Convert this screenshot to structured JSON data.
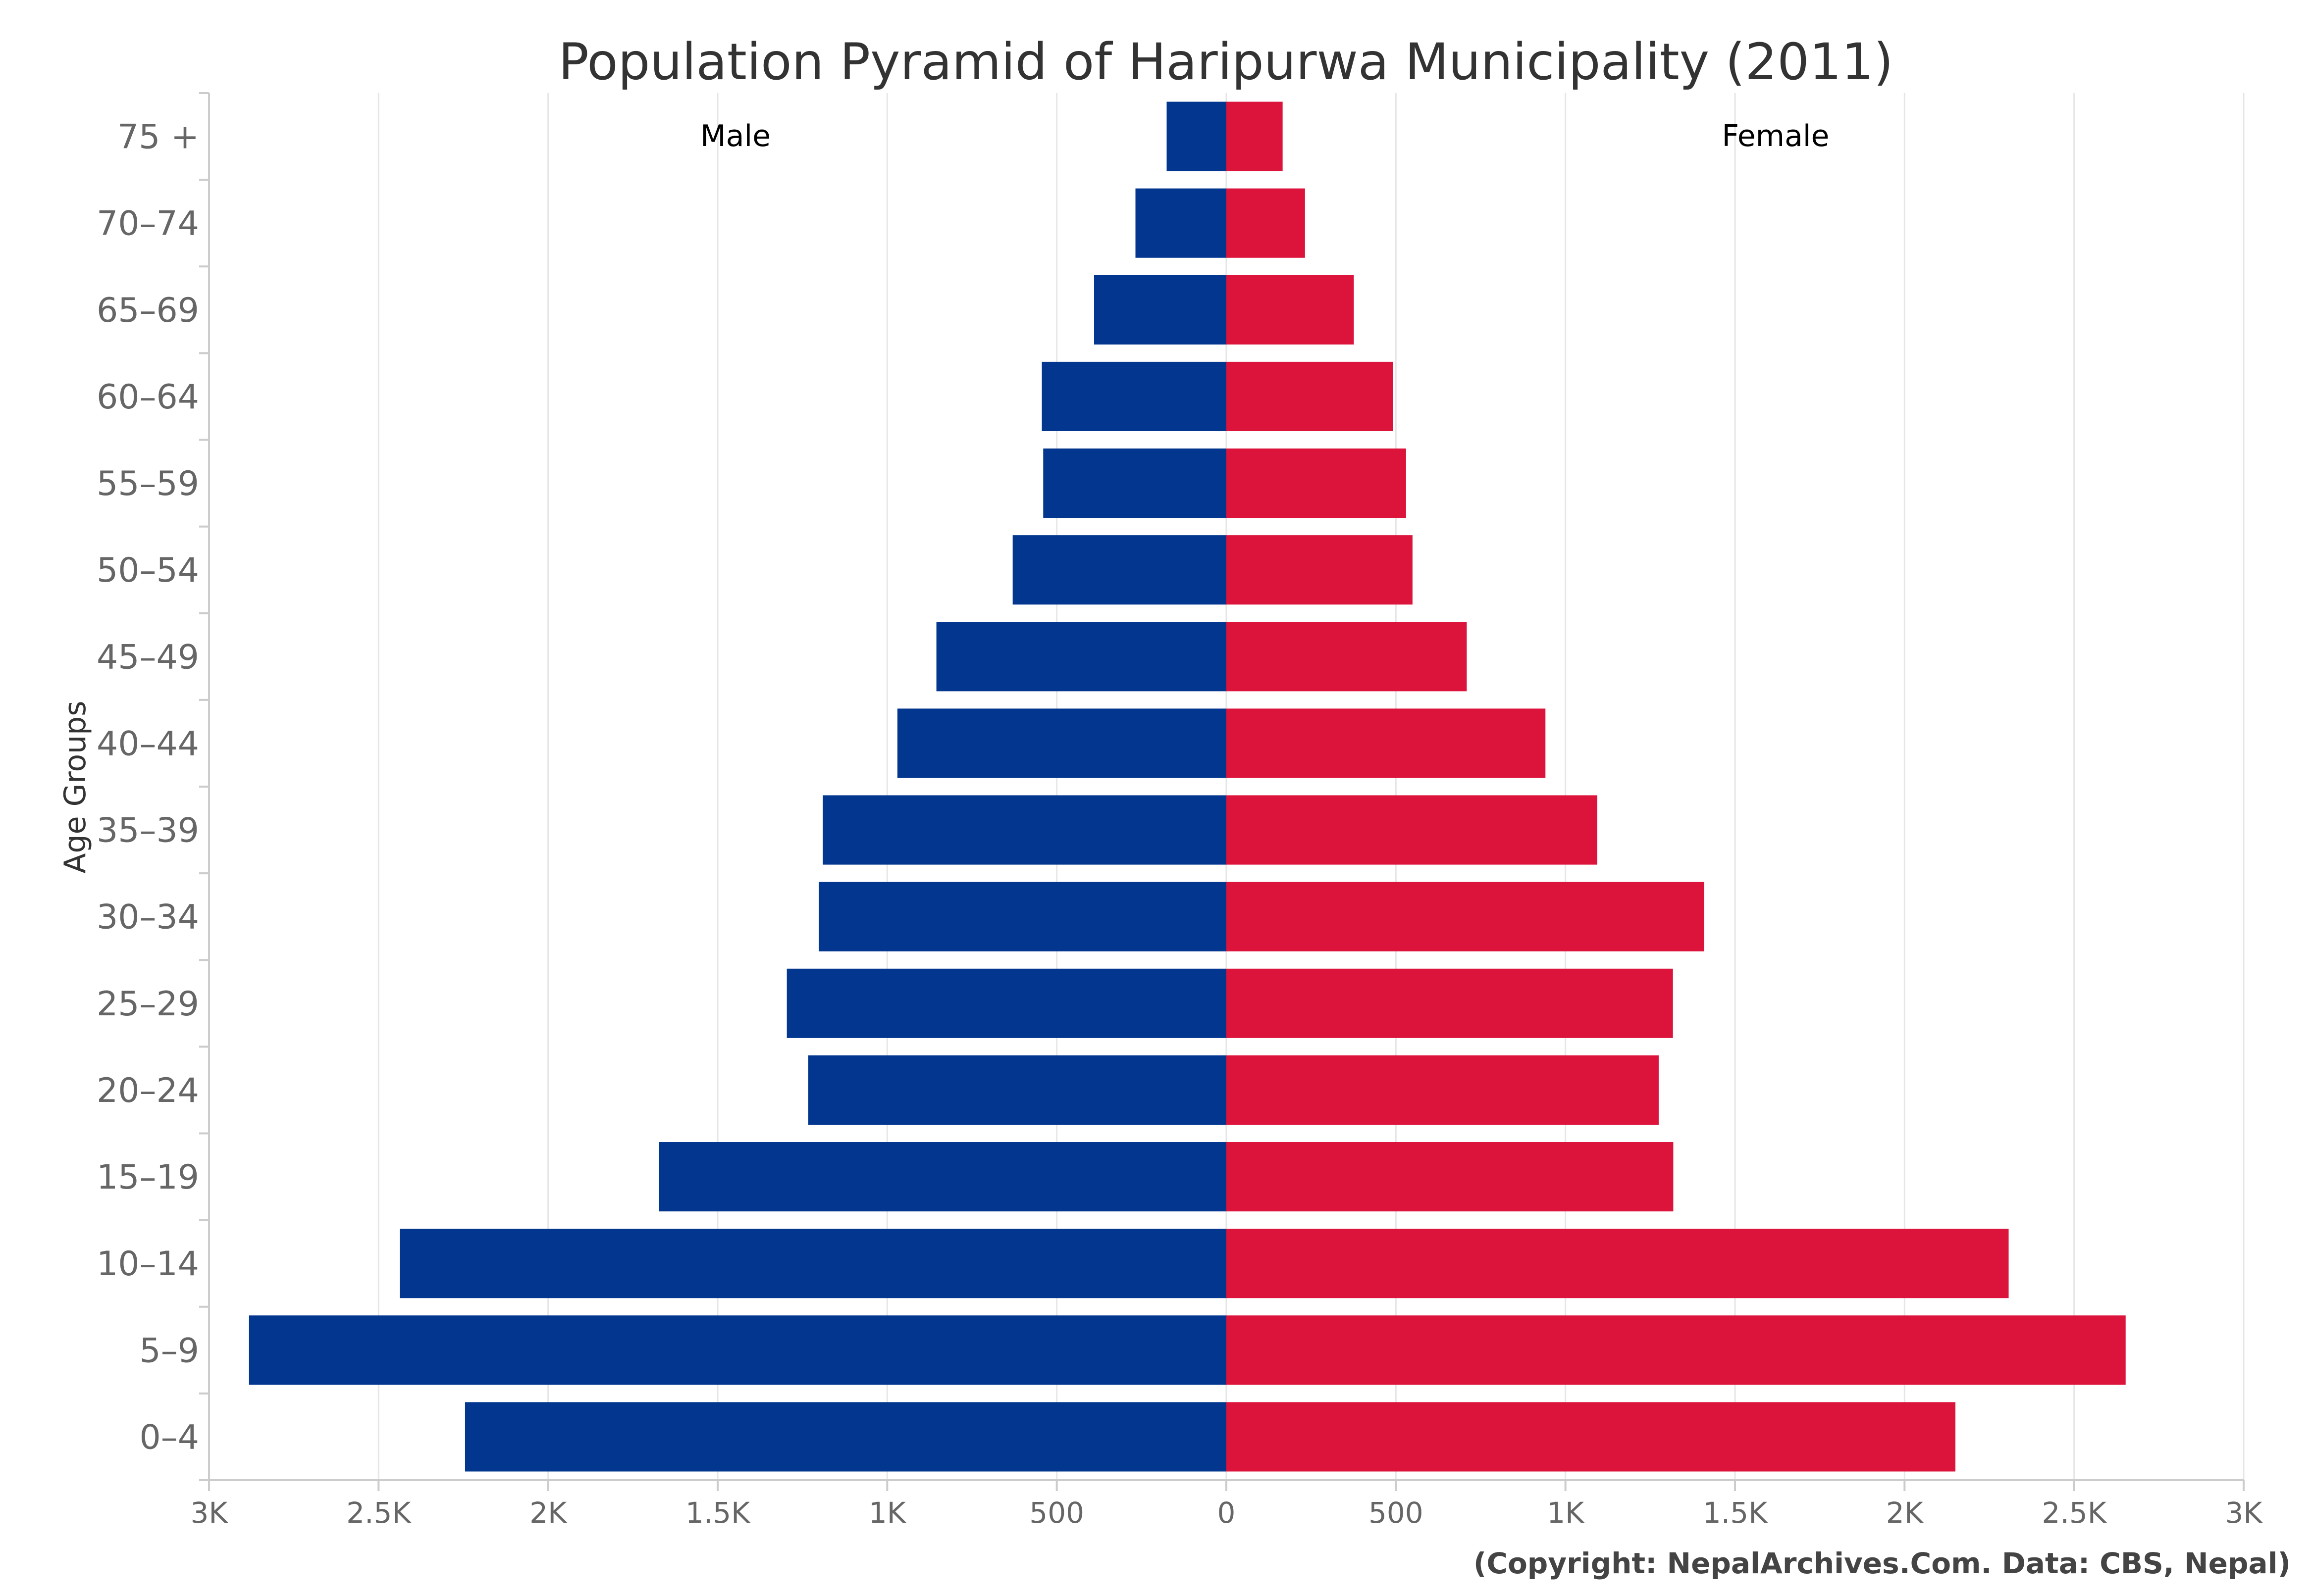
{
  "chart_data": {
    "type": "bar",
    "orientation": "horizontal",
    "title": "Population Pyramid of Haripurwa Municipality (2011)",
    "ylabel": "Age Groups",
    "xlabel": "",
    "categories": [
      "0–4",
      "5–9",
      "10–14",
      "15–19",
      "20–24",
      "25–29",
      "30–34",
      "35–39",
      "40–44",
      "45–49",
      "50–54",
      "55–59",
      "60–64",
      "65–69",
      "70–74",
      "75 +"
    ],
    "series": [
      {
        "name": "Male",
        "color": "#02368F",
        "values": [
          2245,
          2882,
          2437,
          1673,
          1233,
          1296,
          1202,
          1190,
          970,
          855,
          630,
          540,
          544,
          390,
          268,
          176
        ]
      },
      {
        "name": "Female",
        "color": "#DC143C",
        "values": [
          2150,
          2652,
          2307,
          1318,
          1275,
          1317,
          1409,
          1094,
          941,
          709,
          549,
          530,
          491,
          376,
          232,
          166
        ]
      }
    ],
    "xlim": [
      -3000,
      3000
    ],
    "xticks": [
      {
        "value": -3000,
        "label": "3K"
      },
      {
        "value": -2500,
        "label": "2.5K"
      },
      {
        "value": -2000,
        "label": "2K"
      },
      {
        "value": -1500,
        "label": "1.5K"
      },
      {
        "value": -1000,
        "label": "1K"
      },
      {
        "value": -500,
        "label": "500"
      },
      {
        "value": 0,
        "label": "0"
      },
      {
        "value": 500,
        "label": "500"
      },
      {
        "value": 1000,
        "label": "1K"
      },
      {
        "value": 1500,
        "label": "1.5K"
      },
      {
        "value": 2000,
        "label": "2K"
      },
      {
        "value": 2500,
        "label": "2.5K"
      },
      {
        "value": 3000,
        "label": "3K"
      }
    ],
    "grid": true,
    "legend": "none",
    "credit": "(Copyright: NepalArchives.Com. Data: CBS, Nepal)"
  }
}
